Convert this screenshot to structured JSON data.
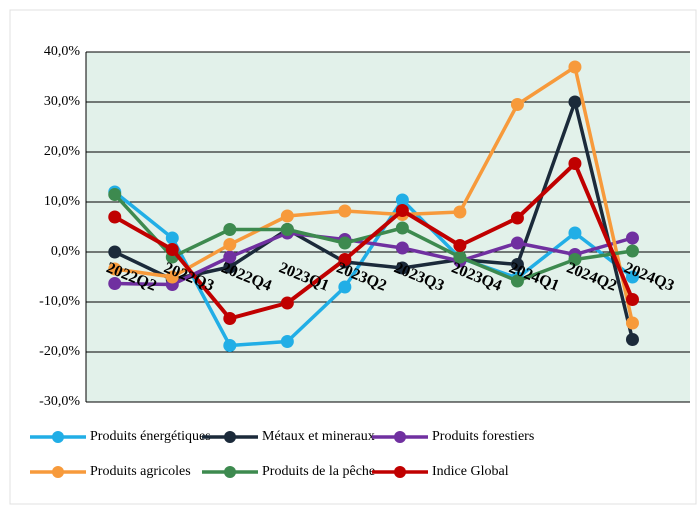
{
  "chart_data": {
    "type": "line",
    "categories": [
      "2022Q2",
      "2022Q3",
      "2022Q4",
      "2023Q1",
      "2023Q2",
      "2023Q3",
      "2023Q4",
      "2024Q1",
      "2024Q2",
      "2024Q3"
    ],
    "series": [
      {
        "name": "Produits énergétiques",
        "color": "#21aee6",
        "values": [
          12,
          2.8,
          -18.7,
          -17.9,
          -7,
          10.4,
          -1.2,
          -5.2,
          3.8,
          -5
        ]
      },
      {
        "name": "Métaux et mineraux",
        "color": "#1b2a3a",
        "values": [
          0,
          -5.5,
          -3,
          4.5,
          -2,
          -3.2,
          -1.5,
          -2.5,
          30,
          -17.5
        ]
      },
      {
        "name": "Produits forestiers",
        "color": "#7030a0",
        "values": [
          -6.3,
          -6.5,
          -1,
          3.8,
          2.5,
          0.8,
          -1.8,
          1.8,
          -0.5,
          2.8
        ]
      },
      {
        "name": "Produits agricoles",
        "color": "#f79a3b",
        "values": [
          -3.4,
          -5,
          1.5,
          7.2,
          8.2,
          7.5,
          8,
          29.5,
          37,
          -14.2
        ]
      },
      {
        "name": "Produits de la pêche",
        "color": "#3d8a4f",
        "values": [
          11.5,
          -1,
          4.5,
          4.5,
          1.8,
          4.8,
          -1,
          -5.8,
          -1.5,
          0.2
        ]
      },
      {
        "name": "Indice Global",
        "color": "#c00000",
        "values": [
          7,
          0.5,
          -13.3,
          -10.2,
          -1.5,
          8.3,
          1.3,
          6.8,
          17.7,
          -9.5
        ]
      }
    ],
    "ylim": [
      -30,
      40
    ],
    "yticks": [
      {
        "value": -30,
        "label": "-30,0%"
      },
      {
        "value": -20,
        "label": "-20,0%"
      },
      {
        "value": -10,
        "label": "-10,0%"
      },
      {
        "value": 0,
        "label": "0,0%"
      },
      {
        "value": 10,
        "label": "10,0%"
      },
      {
        "value": 20,
        "label": "20,0%"
      },
      {
        "value": 30,
        "label": "30,0%"
      },
      {
        "value": 40,
        "label": "40,0%"
      }
    ],
    "grid": true,
    "legend": "bottom"
  }
}
